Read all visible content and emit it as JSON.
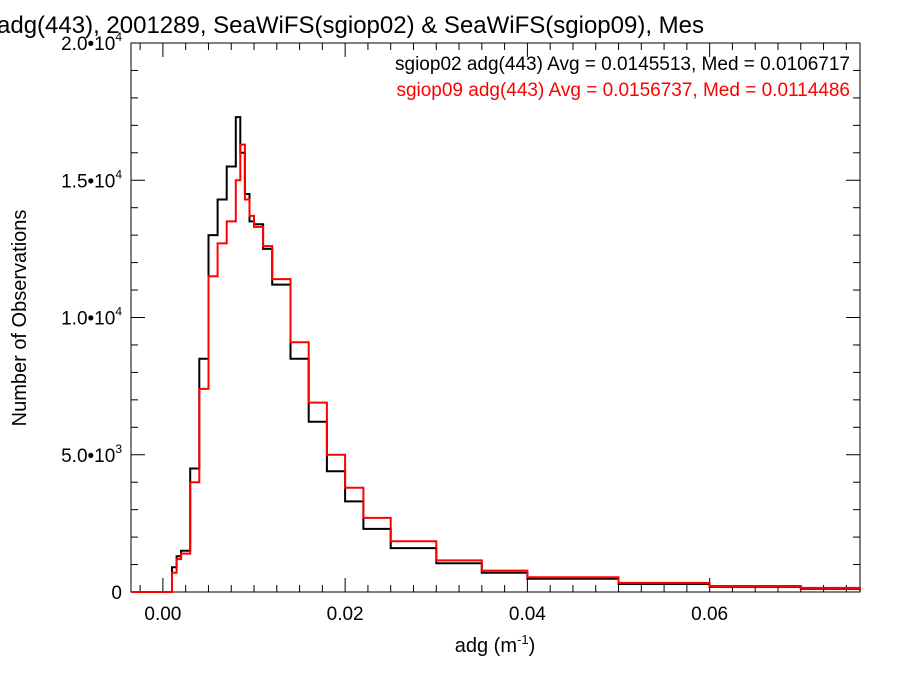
{
  "chart_data": {
    "type": "line",
    "title": "adg(443), 2001289, SeaWiFS(sgiop02) & SeaWiFS(sgiop09), Mes",
    "xlabel": "adg (m⁻¹)",
    "ylabel": "Number of Observations",
    "xlim": [
      -0.0035,
      0.0765
    ],
    "ylim": [
      0,
      20000
    ],
    "grid": false,
    "legend_position": "top-right",
    "xticks": [
      {
        "value": 0.0,
        "label": "0.00"
      },
      {
        "value": 0.02,
        "label": "0.02"
      },
      {
        "value": 0.04,
        "label": "0.04"
      },
      {
        "value": 0.06,
        "label": "0.06"
      }
    ],
    "yticks": [
      {
        "value": 0,
        "mantissa": "0",
        "exponent": ""
      },
      {
        "value": 5000,
        "mantissa": "5.0•10",
        "exponent": "3"
      },
      {
        "value": 10000,
        "mantissa": "1.0•10",
        "exponent": "4"
      },
      {
        "value": 15000,
        "mantissa": "1.5•10",
        "exponent": "4"
      },
      {
        "value": 20000,
        "mantissa": "2.0•10",
        "exponent": "4"
      }
    ],
    "annotations": [
      {
        "text": "sgiop02 adg(443) Avg = 0.0145513, Med = 0.0106717",
        "color": "#000000"
      },
      {
        "text": "sgiop09 adg(443) Avg = 0.0156737, Med = 0.0114486",
        "color": "#ff0000"
      }
    ],
    "series": [
      {
        "name": "sgiop02",
        "color": "#000000",
        "x": [
          -0.0035,
          0.0005,
          0.001,
          0.0015,
          0.002,
          0.003,
          0.004,
          0.005,
          0.006,
          0.007,
          0.008,
          0.0085,
          0.009,
          0.0095,
          0.01,
          0.011,
          0.012,
          0.014,
          0.016,
          0.018,
          0.02,
          0.022,
          0.025,
          0.03,
          0.035,
          0.04,
          0.05,
          0.06,
          0.07,
          0.0765
        ],
        "y": [
          0,
          0,
          900,
          1300,
          1500,
          4500,
          8500,
          13000,
          14300,
          15500,
          17300,
          16000,
          14500,
          13500,
          13400,
          12500,
          11200,
          8500,
          6200,
          4400,
          3300,
          2300,
          1600,
          1050,
          700,
          480,
          290,
          190,
          120,
          50
        ]
      },
      {
        "name": "sgiop09",
        "color": "#ff0000",
        "x": [
          -0.0035,
          0.0005,
          0.001,
          0.0015,
          0.002,
          0.003,
          0.004,
          0.005,
          0.006,
          0.007,
          0.008,
          0.0085,
          0.009,
          0.0095,
          0.01,
          0.011,
          0.012,
          0.014,
          0.016,
          0.018,
          0.02,
          0.022,
          0.025,
          0.03,
          0.035,
          0.04,
          0.05,
          0.06,
          0.07,
          0.0765
        ],
        "y": [
          0,
          0,
          700,
          1200,
          1400,
          4000,
          7400,
          11500,
          12700,
          13500,
          15000,
          16300,
          14300,
          13700,
          13300,
          12600,
          11400,
          9100,
          6900,
          5000,
          3800,
          2700,
          1850,
          1150,
          780,
          540,
          330,
          220,
          150,
          70
        ]
      }
    ]
  }
}
